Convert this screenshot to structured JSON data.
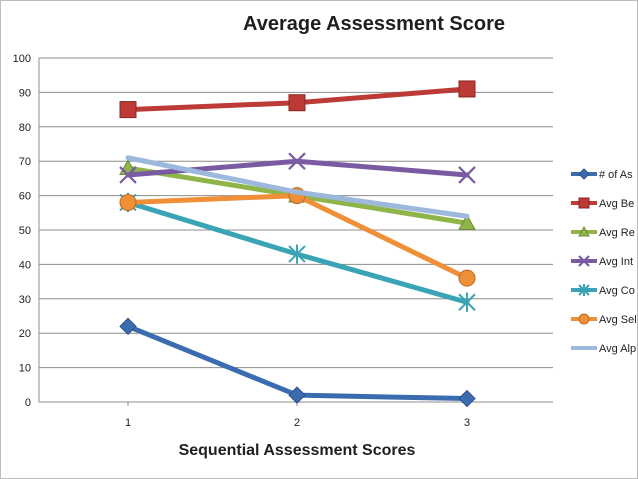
{
  "chart_data": {
    "type": "line",
    "title": "Average Assessment Score",
    "xlabel": "Sequential Assessment Scores",
    "ylabel": "",
    "categories": [
      "1",
      "2",
      "3"
    ],
    "ylim": [
      0,
      100
    ],
    "yticks": [
      0,
      10,
      20,
      30,
      40,
      50,
      60,
      70,
      80,
      90,
      100
    ],
    "grid": true,
    "legend_position": "right",
    "series": [
      {
        "name": "# of As",
        "values": [
          22,
          2,
          1
        ],
        "color": "#3c6cb0",
        "marker": "diamond"
      },
      {
        "name": "Avg Be",
        "values": [
          85,
          87,
          91
        ],
        "color": "#bd3b37",
        "marker": "square"
      },
      {
        "name": "Avg Re",
        "values": [
          68,
          60,
          52
        ],
        "color": "#8fb449",
        "marker": "triangle"
      },
      {
        "name": "Avg Int",
        "values": [
          66,
          70,
          66
        ],
        "color": "#7a5ba2",
        "marker": "x"
      },
      {
        "name": "Avg Co",
        "values": [
          58,
          43,
          29
        ],
        "color": "#3aa4b6",
        "marker": "star"
      },
      {
        "name": "Avg Sel",
        "values": [
          58,
          60,
          36
        ],
        "color": "#ef9038",
        "marker": "circle"
      },
      {
        "name": "Avg Alp",
        "values": [
          71,
          61,
          54
        ],
        "color": "#9db8dd",
        "marker": "none"
      }
    ]
  }
}
